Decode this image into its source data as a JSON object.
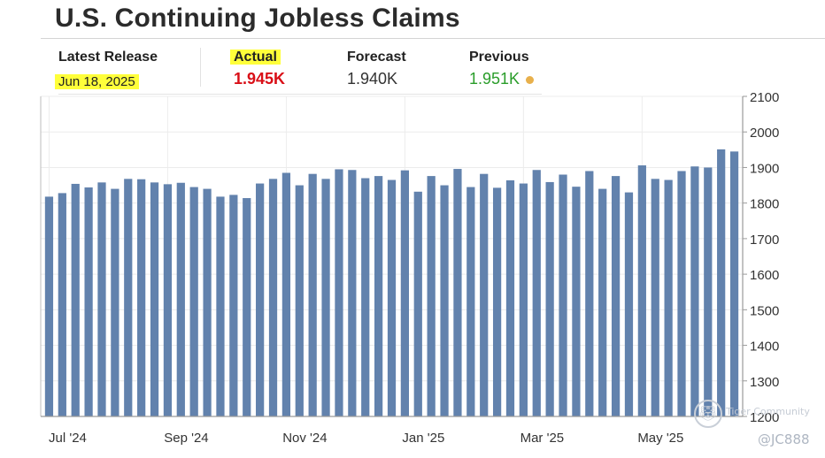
{
  "title": "U.S. Continuing Jobless Claims",
  "stats": {
    "latest_release": {
      "label": "Latest Release",
      "value": "Jun 18, 2025"
    },
    "actual": {
      "label": "Actual",
      "value": "1.945K"
    },
    "forecast": {
      "label": "Forecast",
      "value": "1.940K"
    },
    "previous": {
      "label": "Previous",
      "value": "1.951K"
    }
  },
  "colors": {
    "highlight": "#ffff3a",
    "actual": "#d90f17",
    "previous": "#2a9d2a",
    "previous_dot": "#e8b04c",
    "bar": "#6282ad"
  },
  "watermark": {
    "icon": "tiger-logo-icon",
    "name": "Tiger Community",
    "handle": "@JC888"
  },
  "chart_data": {
    "type": "bar",
    "title": "",
    "xlabel": "",
    "ylabel": "",
    "ylim": [
      1200,
      2100
    ],
    "yticks": [
      1200,
      1300,
      1400,
      1500,
      1600,
      1700,
      1800,
      1900,
      2000,
      2100
    ],
    "y_axis_side": "right",
    "grid": true,
    "x_tick_labels": [
      {
        "label": "Jul '24",
        "index": 0
      },
      {
        "label": "Sep '24",
        "index": 9
      },
      {
        "label": "Nov '24",
        "index": 18
      },
      {
        "label": "Jan '25",
        "index": 27
      },
      {
        "label": "Mar '25",
        "index": 36
      },
      {
        "label": "May '25",
        "index": 45
      }
    ],
    "values": [
      1818,
      1828,
      1854,
      1844,
      1858,
      1840,
      1868,
      1867,
      1858,
      1853,
      1857,
      1845,
      1840,
      1818,
      1823,
      1814,
      1855,
      1868,
      1885,
      1850,
      1882,
      1868,
      1895,
      1893,
      1870,
      1876,
      1865,
      1892,
      1832,
      1876,
      1850,
      1896,
      1845,
      1882,
      1843,
      1864,
      1855,
      1893,
      1859,
      1880,
      1846,
      1890,
      1840,
      1876,
      1830,
      1906,
      1868,
      1865,
      1890,
      1903,
      1900,
      1951,
      1945
    ]
  }
}
